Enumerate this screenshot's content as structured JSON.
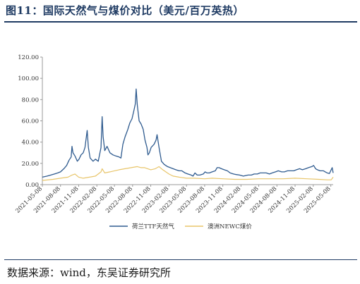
{
  "title": "图11：国际天然气与煤价对比（美元/百万英热）",
  "source": "数据来源：wind，东吴证券研究所",
  "colors": {
    "ttf": "#2f5b8f",
    "newc": "#e8c56a",
    "axis": "#999999",
    "accent": "#1f3b63"
  },
  "chart_data": {
    "type": "line",
    "title": "",
    "xlabel": "",
    "ylabel": "",
    "ylim": [
      0,
      120
    ],
    "yticks": [
      "0.00",
      "20.00",
      "40.00",
      "60.00",
      "80.00",
      "100.00",
      "120.00"
    ],
    "xticks": [
      "2021-05-08",
      "2021-08-08",
      "2021-11-08",
      "2022-02-08",
      "2022-05-08",
      "2022-08-08",
      "2022-11-08",
      "2023-02-08",
      "2023-05-08",
      "2023-08-08",
      "2023-11-08",
      "2024-02-08",
      "2024-05-08",
      "2024-08-08",
      "2024-11-08",
      "2025-02-08",
      "2025-05-08"
    ],
    "xrange": [
      "2021-05-08",
      "2025-05-20"
    ],
    "grid": false,
    "legend_position": "bottom",
    "series": [
      {
        "name": "荷兰TTF天然气",
        "color": "#2f5b8f",
        "points": [
          [
            "2021-05-08",
            7
          ],
          [
            "2021-06-01",
            8
          ],
          [
            "2021-06-20",
            9
          ],
          [
            "2021-07-08",
            10
          ],
          [
            "2021-07-25",
            11
          ],
          [
            "2021-08-08",
            12
          ],
          [
            "2021-08-25",
            15
          ],
          [
            "2021-09-08",
            18
          ],
          [
            "2021-09-20",
            23
          ],
          [
            "2021-10-01",
            26
          ],
          [
            "2021-10-05",
            36
          ],
          [
            "2021-10-10",
            30
          ],
          [
            "2021-10-20",
            27
          ],
          [
            "2021-11-01",
            22
          ],
          [
            "2021-11-10",
            24
          ],
          [
            "2021-11-20",
            28
          ],
          [
            "2021-12-01",
            30
          ],
          [
            "2021-12-10",
            35
          ],
          [
            "2021-12-21",
            51
          ],
          [
            "2021-12-27",
            35
          ],
          [
            "2022-01-05",
            25
          ],
          [
            "2022-01-20",
            22
          ],
          [
            "2022-02-01",
            24
          ],
          [
            "2022-02-15",
            22
          ],
          [
            "2022-03-01",
            35
          ],
          [
            "2022-03-07",
            64
          ],
          [
            "2022-03-12",
            45
          ],
          [
            "2022-03-20",
            32
          ],
          [
            "2022-04-01",
            36
          ],
          [
            "2022-04-15",
            30
          ],
          [
            "2022-05-01",
            28
          ],
          [
            "2022-05-15",
            27
          ],
          [
            "2022-06-01",
            26
          ],
          [
            "2022-06-10",
            25
          ],
          [
            "2022-06-20",
            38
          ],
          [
            "2022-07-01",
            45
          ],
          [
            "2022-07-15",
            52
          ],
          [
            "2022-07-25",
            58
          ],
          [
            "2022-08-05",
            62
          ],
          [
            "2022-08-15",
            70
          ],
          [
            "2022-08-22",
            76
          ],
          [
            "2022-08-26",
            90
          ],
          [
            "2022-09-01",
            75
          ],
          [
            "2022-09-10",
            60
          ],
          [
            "2022-09-20",
            57
          ],
          [
            "2022-10-01",
            52
          ],
          [
            "2022-10-10",
            42
          ],
          [
            "2022-10-20",
            35
          ],
          [
            "2022-10-25",
            28
          ],
          [
            "2022-11-01",
            30
          ],
          [
            "2022-11-10",
            35
          ],
          [
            "2022-11-25",
            38
          ],
          [
            "2022-12-05",
            42
          ],
          [
            "2022-12-10",
            47
          ],
          [
            "2022-12-20",
            35
          ],
          [
            "2023-01-01",
            22
          ],
          [
            "2023-01-15",
            19
          ],
          [
            "2023-02-01",
            17
          ],
          [
            "2023-02-15",
            16
          ],
          [
            "2023-03-01",
            15
          ],
          [
            "2023-03-15",
            14
          ],
          [
            "2023-04-01",
            13
          ],
          [
            "2023-04-15",
            13
          ],
          [
            "2023-05-01",
            11
          ],
          [
            "2023-05-15",
            10
          ],
          [
            "2023-06-01",
            9
          ],
          [
            "2023-06-10",
            8
          ],
          [
            "2023-06-20",
            11
          ],
          [
            "2023-07-01",
            9
          ],
          [
            "2023-07-15",
            9
          ],
          [
            "2023-08-01",
            10
          ],
          [
            "2023-08-10",
            12
          ],
          [
            "2023-08-20",
            11
          ],
          [
            "2023-09-01",
            11
          ],
          [
            "2023-09-15",
            12
          ],
          [
            "2023-10-01",
            13
          ],
          [
            "2023-10-10",
            16
          ],
          [
            "2023-10-20",
            16
          ],
          [
            "2023-11-01",
            15
          ],
          [
            "2023-11-15",
            14
          ],
          [
            "2023-12-01",
            13
          ],
          [
            "2023-12-15",
            11
          ],
          [
            "2024-01-01",
            10
          ],
          [
            "2024-01-15",
            9.5
          ],
          [
            "2024-02-01",
            9
          ],
          [
            "2024-02-20",
            8
          ],
          [
            "2024-03-01",
            8.5
          ],
          [
            "2024-03-15",
            9
          ],
          [
            "2024-04-01",
            9
          ],
          [
            "2024-04-15",
            10
          ],
          [
            "2024-05-01",
            10
          ],
          [
            "2024-05-15",
            11
          ],
          [
            "2024-06-01",
            11
          ],
          [
            "2024-06-15",
            11
          ],
          [
            "2024-07-01",
            10
          ],
          [
            "2024-07-15",
            11
          ],
          [
            "2024-08-01",
            12
          ],
          [
            "2024-08-15",
            13
          ],
          [
            "2024-09-01",
            12
          ],
          [
            "2024-09-15",
            12
          ],
          [
            "2024-10-01",
            13
          ],
          [
            "2024-10-15",
            13
          ],
          [
            "2024-11-01",
            13
          ],
          [
            "2024-11-15",
            14
          ],
          [
            "2024-12-01",
            15
          ],
          [
            "2024-12-15",
            14
          ],
          [
            "2025-01-01",
            15
          ],
          [
            "2025-01-15",
            16
          ],
          [
            "2025-02-01",
            17
          ],
          [
            "2025-02-10",
            18
          ],
          [
            "2025-02-20",
            15
          ],
          [
            "2025-03-01",
            14
          ],
          [
            "2025-03-15",
            13
          ],
          [
            "2025-04-01",
            13
          ],
          [
            "2025-04-10",
            12
          ],
          [
            "2025-04-20",
            11
          ],
          [
            "2025-05-01",
            10.5
          ],
          [
            "2025-05-10",
            14
          ],
          [
            "2025-05-15",
            16
          ],
          [
            "2025-05-20",
            11
          ]
        ]
      },
      {
        "name": "澳洲NEWC煤价",
        "color": "#e8c56a",
        "points": [
          [
            "2021-05-08",
            4
          ],
          [
            "2021-07-01",
            5
          ],
          [
            "2021-08-08",
            6
          ],
          [
            "2021-09-15",
            7
          ],
          [
            "2021-10-05",
            9
          ],
          [
            "2021-10-20",
            10
          ],
          [
            "2021-11-08",
            7
          ],
          [
            "2021-12-01",
            6
          ],
          [
            "2022-01-01",
            7
          ],
          [
            "2022-02-01",
            8
          ],
          [
            "2022-03-01",
            12
          ],
          [
            "2022-03-07",
            15
          ],
          [
            "2022-03-20",
            11
          ],
          [
            "2022-04-15",
            12
          ],
          [
            "2022-05-08",
            13
          ],
          [
            "2022-06-01",
            14
          ],
          [
            "2022-07-01",
            15
          ],
          [
            "2022-08-01",
            16
          ],
          [
            "2022-09-01",
            17
          ],
          [
            "2022-09-20",
            16
          ],
          [
            "2022-10-08",
            16
          ],
          [
            "2022-11-08",
            14
          ],
          [
            "2022-12-01",
            15
          ],
          [
            "2022-12-20",
            17
          ],
          [
            "2023-01-08",
            14
          ],
          [
            "2023-02-08",
            10
          ],
          [
            "2023-03-01",
            8
          ],
          [
            "2023-04-01",
            7
          ],
          [
            "2023-05-08",
            6
          ],
          [
            "2023-06-15",
            6
          ],
          [
            "2023-08-08",
            5.5
          ],
          [
            "2023-09-15",
            6
          ],
          [
            "2023-11-08",
            5.5
          ],
          [
            "2024-01-08",
            5
          ],
          [
            "2024-03-08",
            5
          ],
          [
            "2024-05-08",
            5.5
          ],
          [
            "2024-07-08",
            5.5
          ],
          [
            "2024-09-08",
            5.5
          ],
          [
            "2024-11-08",
            6
          ],
          [
            "2025-01-08",
            5.5
          ],
          [
            "2025-03-08",
            5
          ],
          [
            "2025-04-20",
            4.5
          ],
          [
            "2025-05-10",
            4.5
          ],
          [
            "2025-05-20",
            7
          ]
        ]
      }
    ]
  }
}
